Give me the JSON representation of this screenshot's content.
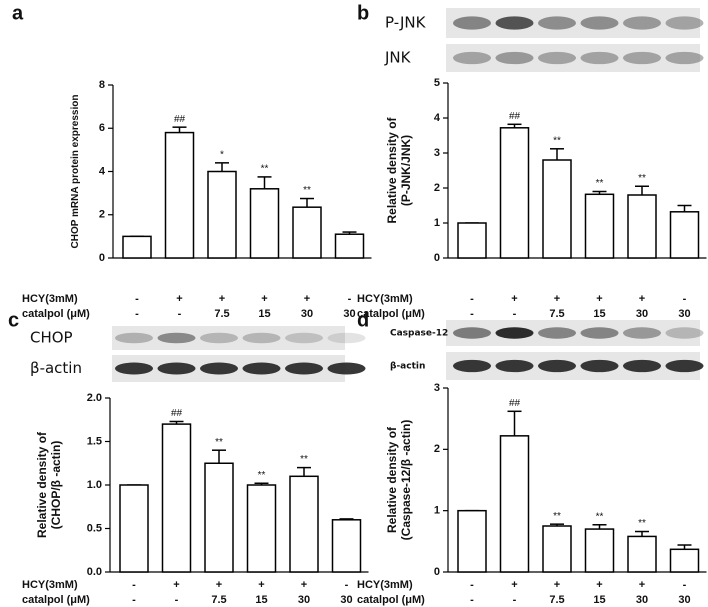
{
  "chart_data": [
    {
      "panel": "a",
      "type": "bar",
      "ylabel": [
        "CHOP mRNA protein expression"
      ],
      "ylim": [
        0,
        8
      ],
      "yticks": [
        0,
        2,
        4,
        6,
        8
      ],
      "values": [
        1,
        5.8,
        4.0,
        3.2,
        2.35,
        1.1
      ],
      "errors": [
        0,
        0.25,
        0.4,
        0.55,
        0.4,
        0.1
      ],
      "annotations": [
        null,
        "##",
        "*",
        "**",
        "**",
        null
      ],
      "conditions": [
        {
          "name": "HCY(3mM)",
          "values": [
            "-",
            "+",
            "+",
            "+",
            "+",
            "-"
          ]
        },
        {
          "name": "catalpol (μM)",
          "values": [
            "-",
            "-",
            "7.5",
            "15",
            "30",
            "30"
          ]
        }
      ],
      "blots": [],
      "color": "#ffffff"
    },
    {
      "panel": "b",
      "type": "bar",
      "ylabel": [
        "Relative density of",
        "(P-JNK/JNK)"
      ],
      "ylim": [
        0,
        5
      ],
      "yticks": [
        0,
        1,
        2,
        3,
        4,
        5
      ],
      "values": [
        1,
        3.72,
        2.8,
        1.82,
        1.8,
        1.32
      ],
      "errors": [
        0,
        0.1,
        0.32,
        0.08,
        0.25,
        0.18
      ],
      "annotations": [
        null,
        "##",
        "**",
        "**",
        "**",
        null
      ],
      "conditions": [
        {
          "name": "HCY(3mM)",
          "values": [
            "-",
            "+",
            "+",
            "+",
            "+",
            "-"
          ]
        },
        {
          "name": "catalpol (μM)",
          "values": [
            "-",
            "-",
            "7.5",
            "15",
            "30",
            "30"
          ]
        }
      ],
      "blots": [
        "P-JNK",
        "JNK"
      ],
      "color": "#ffffff"
    },
    {
      "panel": "c",
      "type": "bar",
      "ylabel": [
        "Relative density of",
        "(CHOP/β -actin)"
      ],
      "ylim": [
        0,
        2.0
      ],
      "yticks": [
        {
          "value": 0,
          "label": "0.0"
        },
        {
          "value": 0.5,
          "label": "0.5"
        },
        {
          "value": 1,
          "label": "1.0"
        },
        {
          "value": 1.5,
          "label": "1.5"
        },
        {
          "value": 2,
          "label": "2.0"
        }
      ],
      "values": [
        1,
        1.7,
        1.25,
        1.0,
        1.1,
        0.6
      ],
      "errors": [
        0,
        0.03,
        0.15,
        0.02,
        0.1,
        0.01
      ],
      "annotations": [
        null,
        "##",
        "**",
        "**",
        "**",
        null
      ],
      "conditions": [
        {
          "name": "HCY(3mM)",
          "values": [
            "-",
            "+",
            "+",
            "+",
            "+",
            "-"
          ]
        },
        {
          "name": "catalpol (μM)",
          "values": [
            "-",
            "-",
            "7.5",
            "15",
            "30",
            "30"
          ]
        }
      ],
      "blots": [
        "CHOP",
        "β-actin"
      ],
      "color": "#ffffff"
    },
    {
      "panel": "d",
      "type": "bar",
      "ylabel": [
        "Relative density of",
        "(Caspase-12/β -actin)"
      ],
      "ylim": [
        0,
        3
      ],
      "yticks": [
        0,
        1,
        2,
        3
      ],
      "values": [
        1,
        2.22,
        0.75,
        0.7,
        0.58,
        0.37
      ],
      "errors": [
        0,
        0.4,
        0.03,
        0.07,
        0.08,
        0.07
      ],
      "annotations": [
        null,
        "##",
        "**",
        "**",
        "**",
        null
      ],
      "conditions": [
        {
          "name": "HCY(3mM)",
          "values": [
            "-",
            "+",
            "+",
            "+",
            "+",
            "-"
          ]
        },
        {
          "name": "catalpol (μM)",
          "values": [
            "-",
            "-",
            "7.5",
            "15",
            "30",
            "30"
          ]
        }
      ],
      "blots": [
        "Caspase-12",
        "β-actin"
      ],
      "color": "#ffffff"
    }
  ]
}
